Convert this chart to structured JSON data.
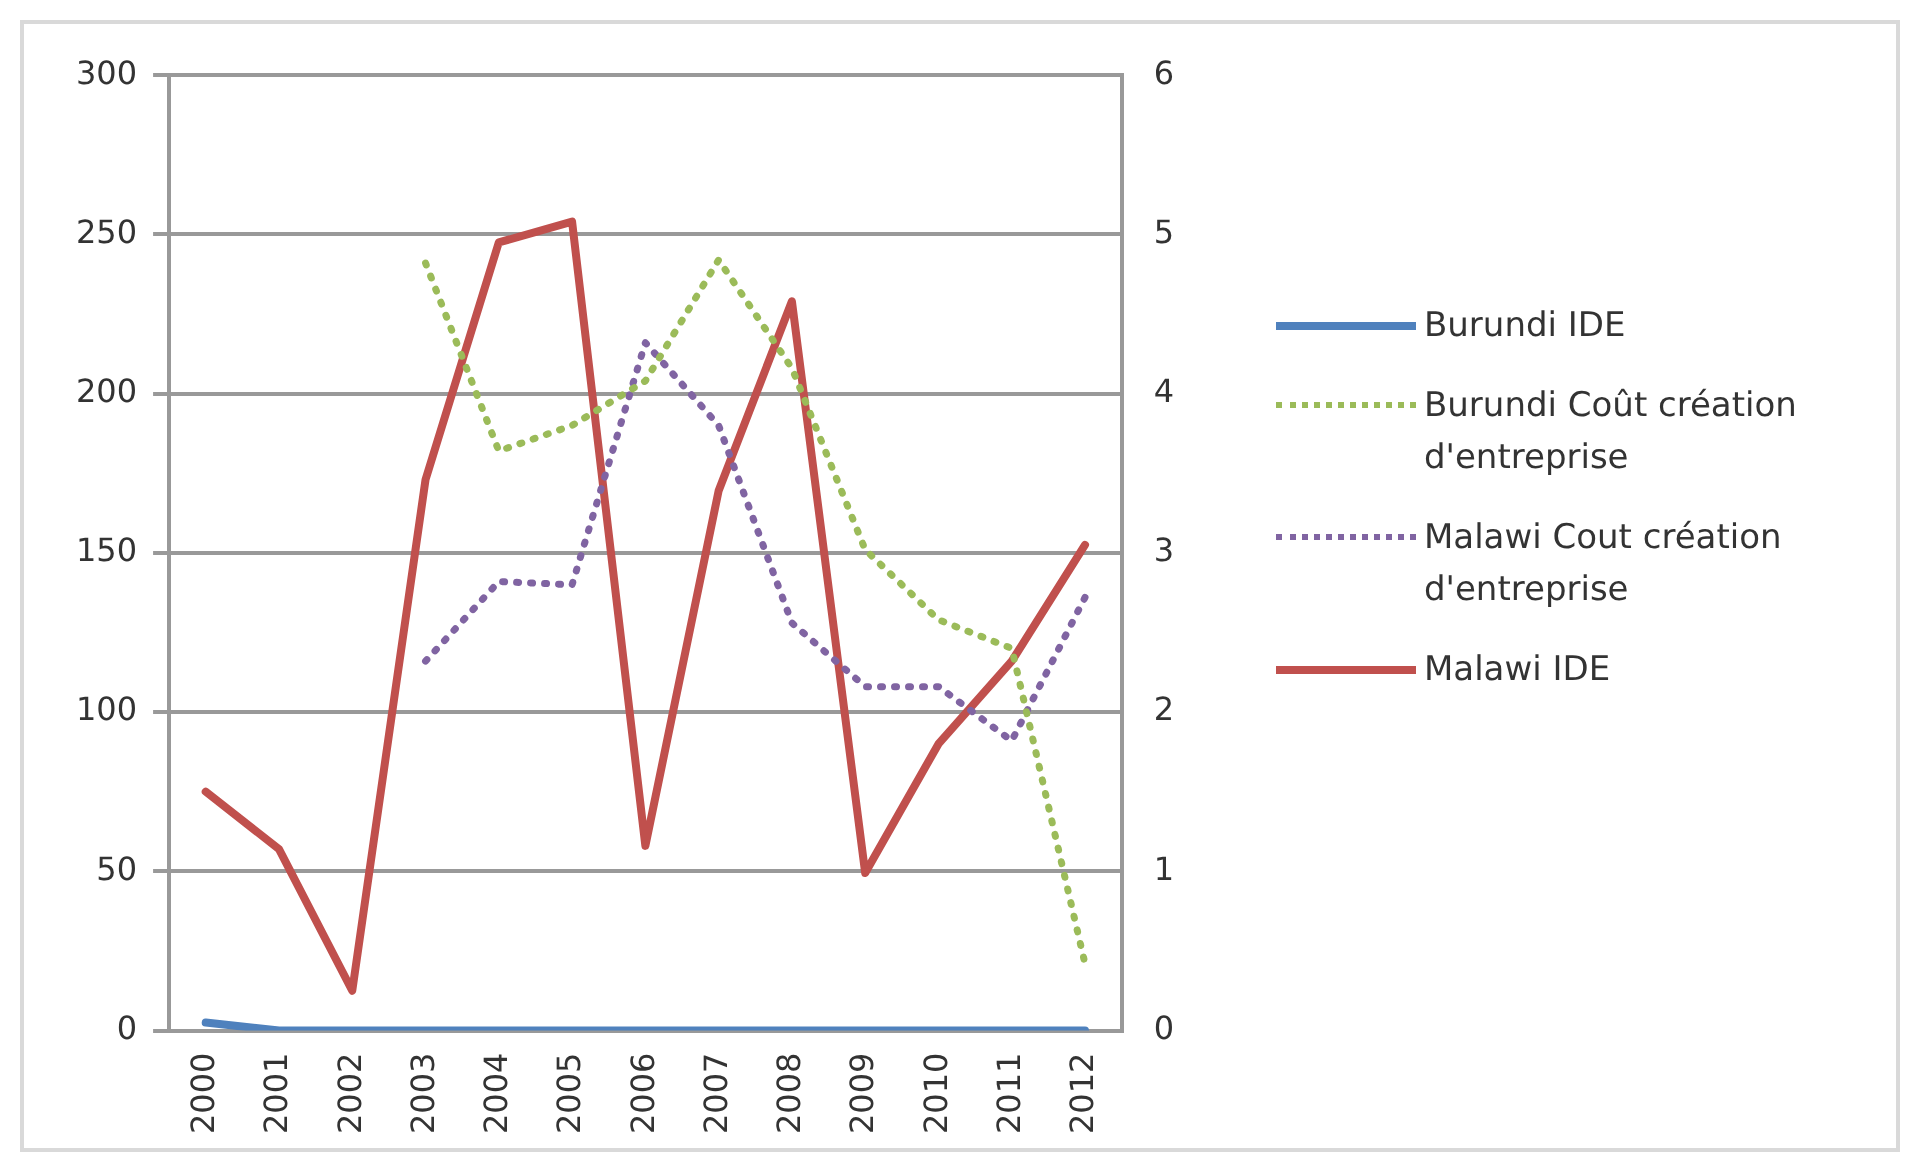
{
  "chart_data": {
    "type": "line",
    "categories": [
      "2000",
      "2001",
      "2002",
      "2003",
      "2004",
      "2005",
      "2006",
      "2007",
      "2008",
      "2009",
      "2010",
      "2011",
      "2012"
    ],
    "series": [
      {
        "name": "Burundi IDE",
        "color": "#4f81bd",
        "axis": "y2",
        "line_style": "solid",
        "values": [
          0.05,
          0,
          0,
          0,
          0,
          0,
          0,
          0,
          0,
          0,
          0,
          0,
          0
        ]
      },
      {
        "name": "Burundi Coût création d'entreprise",
        "color": "#9bbb59",
        "line_style": "dotted",
        "values": [
          null,
          null,
          null,
          241,
          182,
          190,
          204,
          242,
          208,
          151,
          129,
          120,
          21
        ]
      },
      {
        "name": "Malawi Cout création d'entreprise",
        "color": "#8064a2",
        "line_style": "dotted",
        "values": [
          null,
          null,
          null,
          116,
          141,
          140,
          216,
          190,
          128,
          108,
          108,
          91,
          136
        ]
      },
      {
        "name": "Malawi IDE",
        "color": "#c0504d",
        "axis": "y2",
        "line_style": "solid",
        "values": [
          1.5,
          1.14,
          0.25,
          3.46,
          4.95,
          5.08,
          1.16,
          3.39,
          4.58,
          0.99,
          1.8,
          2.32,
          3.05
        ]
      }
    ],
    "ylim": [
      0,
      300
    ],
    "yticks": [
      0,
      50,
      100,
      150,
      200,
      250,
      300
    ],
    "y2lim": [
      0,
      6
    ],
    "y2ticks": [
      0,
      1,
      2,
      3,
      4,
      5,
      6
    ],
    "grid": "y",
    "legend": "right",
    "marker": "none"
  }
}
